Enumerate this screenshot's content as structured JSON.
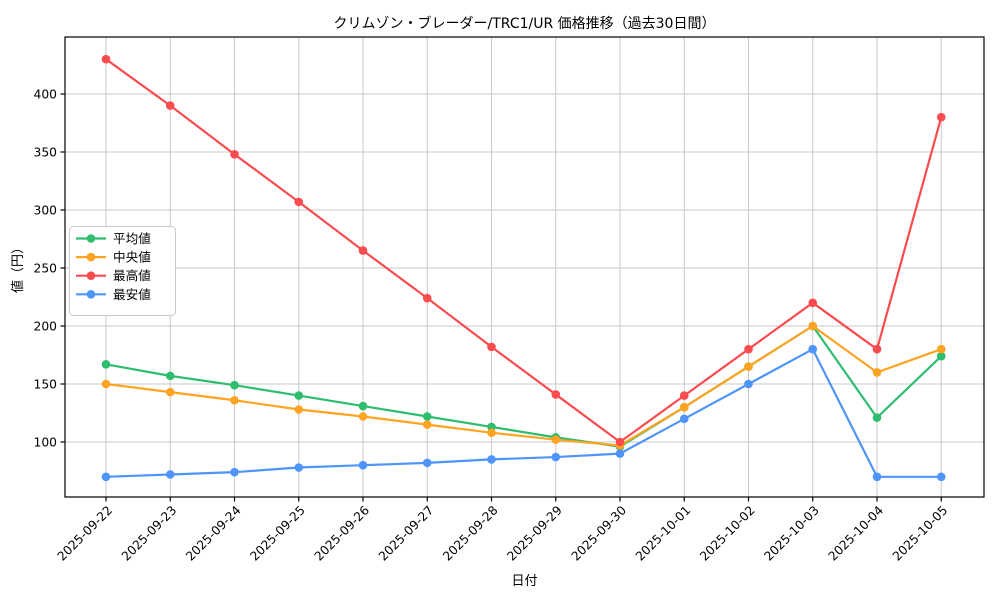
{
  "chart_data": {
    "type": "line",
    "title": "クリムゾン・ブレーダー/TRC1/UR 価格推移（過去30日間）",
    "xlabel": "日付",
    "ylabel": "値（円）",
    "x": [
      "2025-09-22",
      "2025-09-23",
      "2025-09-24",
      "2025-09-25",
      "2025-09-26",
      "2025-09-27",
      "2025-09-28",
      "2025-09-29",
      "2025-09-30",
      "2025-10-01",
      "2025-10-02",
      "2025-10-03",
      "2025-10-04",
      "2025-10-05"
    ],
    "yticks": [
      100,
      150,
      200,
      250,
      300,
      350,
      400
    ],
    "ylim": [
      52,
      450
    ],
    "grid": true,
    "grid_color": "#c9c9c9",
    "background": "#ffffff",
    "legend_position": "center-left",
    "series": [
      {
        "key": "average",
        "name": "平均値",
        "color": "#2ebd6e",
        "values": [
          167,
          157,
          149,
          140,
          131,
          122,
          113,
          104,
          96,
          130,
          165,
          200,
          121,
          174
        ]
      },
      {
        "key": "median",
        "name": "中央値",
        "color": "#ffa322",
        "values": [
          150,
          143,
          136,
          128,
          122,
          115,
          108,
          102,
          97,
          130,
          165,
          200,
          160,
          180
        ]
      },
      {
        "key": "max",
        "name": "最高値",
        "color": "#fa4b4f",
        "values": [
          430,
          390,
          348,
          307,
          265,
          224,
          182,
          141,
          100,
          140,
          180,
          220,
          180,
          380
        ]
      },
      {
        "key": "min",
        "name": "最安値",
        "color": "#4e94f9",
        "values": [
          70,
          72,
          74,
          78,
          80,
          82,
          85,
          87,
          90,
          120,
          150,
          180,
          70,
          70
        ]
      }
    ]
  }
}
